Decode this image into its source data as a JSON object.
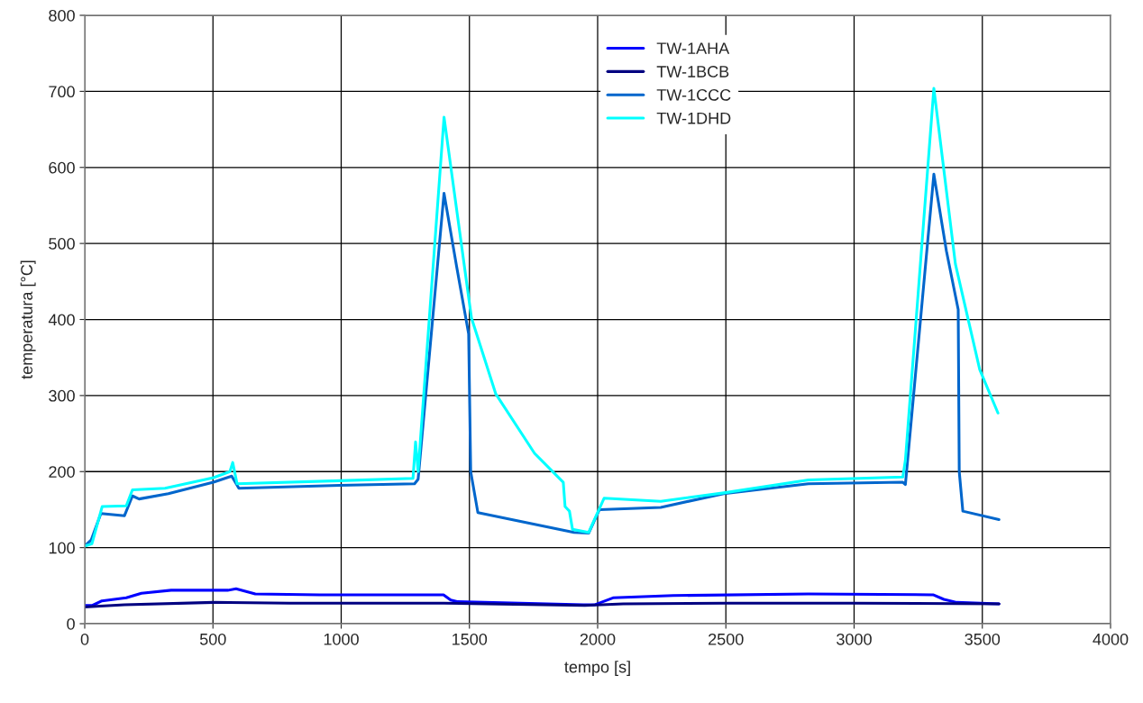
{
  "chart_data": {
    "type": "line",
    "xlabel": "tempo [s]",
    "ylabel": "temperatura [°C]",
    "xlim": [
      0,
      4000
    ],
    "xticks": [
      0,
      500,
      1000,
      1500,
      2000,
      2500,
      3000,
      3500,
      4000
    ],
    "ylim": [
      0,
      800
    ],
    "yticks": [
      0,
      100,
      200,
      300,
      400,
      500,
      600,
      700,
      800
    ],
    "grid": true,
    "legend": "top",
    "marker": "none",
    "line_style": "solid",
    "series": [
      {
        "name": "TW-1AHA",
        "color": "#0000ff",
        "x": [
          0,
          30,
          67,
          162,
          221,
          337,
          560,
          590,
          665,
          917,
          1399,
          1427,
          1452,
          1944,
          1990,
          2060,
          2295,
          2822,
          3308,
          3350,
          3400,
          3565
        ],
        "values": [
          24,
          24,
          30,
          34,
          40,
          44,
          44,
          46,
          39,
          38,
          38,
          31,
          29,
          25,
          25,
          34,
          37,
          39,
          38,
          32,
          28,
          26
        ]
      },
      {
        "name": "TW-1BCB",
        "color": "#000080",
        "x": [
          0,
          60,
          155,
          502,
          800,
          1400,
          1950,
          2100,
          2500,
          3000,
          3565
        ],
        "values": [
          22,
          23,
          25,
          28,
          27,
          27,
          24,
          26,
          27,
          27,
          26
        ]
      },
      {
        "name": "TW-1CCC",
        "color": "#0066cc",
        "x": [
          3,
          25,
          63,
          155,
          186,
          212,
          326,
          502,
          573,
          601,
          994,
          1286,
          1300,
          1401,
          1450,
          1497,
          1505,
          1533,
          1908,
          1965,
          2007,
          2246,
          2492,
          2822,
          3190,
          3200,
          3311,
          3360,
          3406,
          3410,
          3424,
          3565
        ],
        "values": [
          103,
          110,
          145,
          142,
          168,
          164,
          171,
          186,
          194,
          178,
          182,
          184,
          190,
          566,
          470,
          381,
          200,
          146,
          120,
          119,
          150,
          153,
          171,
          184,
          186,
          183,
          591,
          490,
          413,
          200,
          148,
          137
        ]
      },
      {
        "name": "TW-1DHD",
        "color": "#00ffff",
        "x": [
          0,
          28,
          68,
          162,
          186,
          313,
          502,
          566,
          577,
          594,
          994,
          1280,
          1290,
          1300,
          1401,
          1508,
          1603,
          1754,
          1866,
          1873,
          1890,
          1902,
          1965,
          2025,
          2246,
          2492,
          2822,
          3190,
          3200,
          3311,
          3395,
          3490,
          3561
        ],
        "values": [
          102,
          105,
          154,
          155,
          176,
          178,
          192,
          200,
          212,
          184,
          188,
          191,
          239,
          200,
          666,
          402,
          302,
          224,
          186,
          154,
          148,
          124,
          120,
          165,
          161,
          172,
          189,
          193,
          215,
          704,
          473,
          334,
          277
        ]
      }
    ]
  }
}
